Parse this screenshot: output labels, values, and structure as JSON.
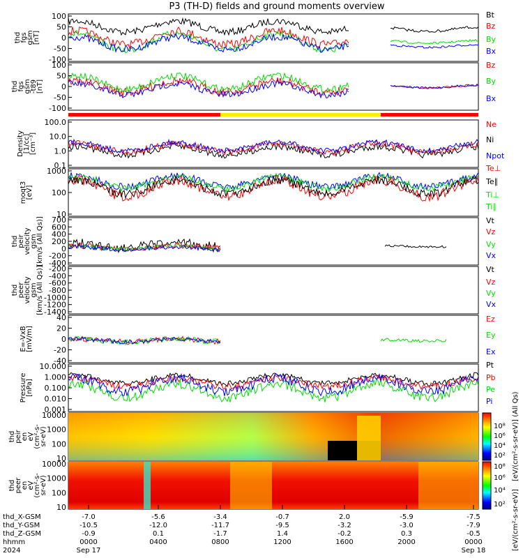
{
  "title": "P3 (TH-D) fields and ground moments overview",
  "footer": {
    "rows": [
      {
        "label": "thd_X-GSM",
        "values": [
          "-7.0",
          "-5.6",
          "-3.4",
          "-0.7",
          "2.0",
          "-5.9",
          "-7.5"
        ]
      },
      {
        "label": "thd_Y-GSM",
        "values": [
          "-10.5",
          "-12.0",
          "-11.7",
          "-9.5",
          "-3.2",
          "-3.0",
          "-7.9"
        ]
      },
      {
        "label": "thd_Z-GSM",
        "values": [
          "-0.9",
          "0.1",
          "-1.7",
          "1.4",
          "-0.2",
          "0.3",
          "-0.5"
        ]
      },
      {
        "label": "hhmm",
        "values": [
          "0000",
          "0400",
          "0800",
          "1200",
          "1600",
          "2000",
          "0000"
        ]
      },
      {
        "label": "2024",
        "values": [
          "Sep 17",
          "",
          "",
          "",
          "",
          "",
          "Sep 18"
        ]
      }
    ]
  },
  "colorbar_label": "[eV/(cm²-s-sr-eV)]",
  "colorbar_label_top": "[eV/(cm²-s-sr-eV)] (All Qs)",
  "colorbar_ticks": [
    "10⁸",
    "10⁶",
    "10⁴",
    "10²"
  ],
  "colorbar_ticks2": [
    "10⁸",
    "10⁶",
    "10⁴",
    "10²"
  ],
  "colors": {
    "black": "#000000",
    "red": "#ff0000",
    "green": "#00dd00",
    "blue": "#0000ff",
    "yellow": "#ffee00"
  },
  "chart_data": [
    {
      "type": "line",
      "ylabel_lines": [
        "thd",
        "fgs",
        "gsm",
        "[nT]"
      ],
      "ylim": [
        -100,
        100
      ],
      "ticks": [
        "100",
        "50",
        "0",
        "-50",
        "-100"
      ],
      "series": [
        {
          "name": "Bt",
          "color": "#000000"
        },
        {
          "name": "Bz",
          "color": "#ff0000"
        },
        {
          "name": "By",
          "color": "#00dd00"
        },
        {
          "name": "Bx",
          "color": "#0000ff"
        }
      ]
    },
    {
      "type": "line",
      "ylabel_lines": [
        "thd",
        "fgs",
        "gsm",
        "-t89",
        "[nT]"
      ],
      "ylim": [
        -120,
        120
      ],
      "ticks": [
        "100",
        "50",
        "0",
        "-50",
        "-100"
      ],
      "series": [
        {
          "name": "Bz",
          "color": "#ff0000"
        },
        {
          "name": "By",
          "color": "#00dd00"
        },
        {
          "name": "Bx",
          "color": "#0000ff"
        }
      ]
    },
    {
      "type": "line",
      "ylabel_lines": [
        "Density",
        "[1/cc]",
        "[cm⁻³]"
      ],
      "scale": "log",
      "ticks": [
        "100.0",
        "10.0",
        "1.0",
        "0.1"
      ],
      "series": [
        {
          "name": "Ne",
          "color": "#ff0000"
        },
        {
          "name": "Ni",
          "color": "#000000"
        },
        {
          "name": "Npot",
          "color": "#0000ff"
        }
      ]
    },
    {
      "type": "line",
      "ylabel_lines": [
        "moqt3",
        "[eV]"
      ],
      "scale": "log",
      "ticks": [
        "1000",
        "100",
        "10"
      ],
      "series": [
        {
          "name": "Te⊥",
          "color": "#ff0000"
        },
        {
          "name": "Te∥",
          "color": "#000000"
        },
        {
          "name": "Ti⊥",
          "color": "#00dd00"
        },
        {
          "name": "Ti∥",
          "color": "#00dd00"
        }
      ]
    },
    {
      "type": "line",
      "ylabel_lines": [
        "thd",
        "peir",
        "velocity",
        "gsm",
        "[km/s (All Qs)]"
      ],
      "ylim": [
        -400,
        700
      ],
      "ticks": [
        "700",
        "600",
        "400",
        "200",
        "0",
        "-200",
        "-400"
      ],
      "series": [
        {
          "name": "Vt",
          "color": "#000000"
        },
        {
          "name": "Vz",
          "color": "#ff0000"
        },
        {
          "name": "Vy",
          "color": "#00dd00"
        },
        {
          "name": "Vx",
          "color": "#0000ff"
        }
      ]
    },
    {
      "type": "line",
      "ylabel_lines": [
        "thd",
        "peer",
        "velocity",
        "gsm",
        "[km/s (All Qs)]"
      ],
      "ylim": [
        -1400,
        0
      ],
      "ticks": [
        "-200",
        "-400",
        "-600",
        "-800",
        "-1000",
        "-1200",
        "-1400"
      ],
      "series": [
        {
          "name": "Vt",
          "color": "#000000"
        },
        {
          "name": "Vz",
          "color": "#ff0000"
        },
        {
          "name": "Vy",
          "color": "#00dd00"
        },
        {
          "name": "Vx",
          "color": "#0000ff"
        }
      ]
    },
    {
      "type": "line",
      "ylabel_lines": [
        "E=-VxB",
        "[mV/m]"
      ],
      "ylim": [
        -40,
        40
      ],
      "ticks": [
        "40",
        "20",
        "0",
        "-20",
        "-40"
      ],
      "series": [
        {
          "name": "Ez",
          "color": "#ff0000"
        },
        {
          "name": "Ey",
          "color": "#00dd00"
        },
        {
          "name": "Ex",
          "color": "#0000ff"
        }
      ]
    },
    {
      "type": "line",
      "ylabel_lines": [
        "Pressure",
        "[nPa]"
      ],
      "scale": "log",
      "ticks": [
        "10.000",
        "1.000",
        "0.100",
        "0.010",
        "0.001"
      ],
      "series": [
        {
          "name": "Pt",
          "color": "#000000"
        },
        {
          "name": "Pb",
          "color": "#ff0000"
        },
        {
          "name": "Pe",
          "color": "#00dd00"
        },
        {
          "name": "Pi",
          "color": "#0000ff"
        }
      ]
    },
    {
      "type": "heatmap",
      "ylabel_lines": [
        "thd",
        "peir",
        "en",
        "eV",
        "(cm²-s-",
        "sr-eV)"
      ],
      "scale": "log",
      "ticks": [
        "10000",
        "1000",
        "100",
        "10"
      ]
    },
    {
      "type": "heatmap",
      "ylabel_lines": [
        "thd",
        "peer",
        "en",
        "eV",
        "(cm²-s-",
        "sr-eV)"
      ],
      "scale": "log",
      "ticks": [
        "10000",
        "1000",
        "100",
        "10"
      ]
    }
  ]
}
